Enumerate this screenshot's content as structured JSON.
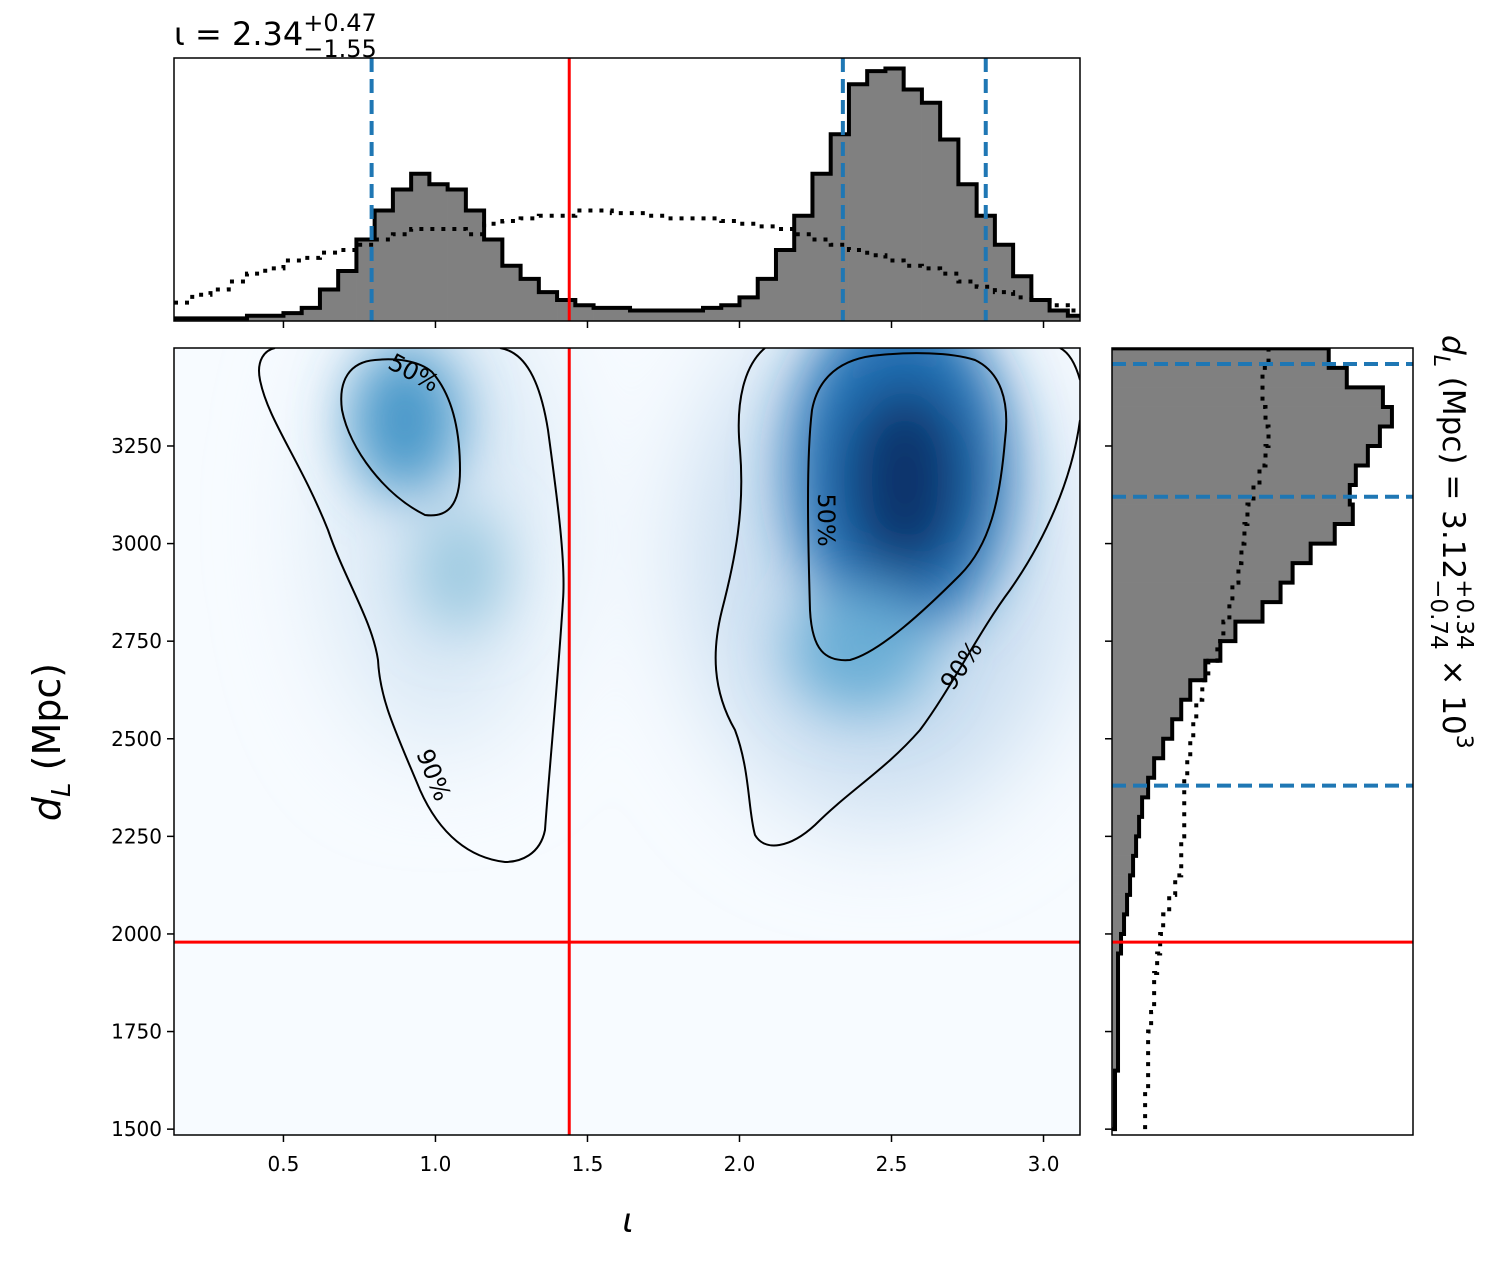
{
  "chart_data": [
    {
      "type": "histogram",
      "orientation": "vertical",
      "title": {
        "text": "ι = 2.34",
        "sup": "+0.47",
        "sub": "−1.55"
      },
      "bins": [
        0.14,
        0.2,
        0.26,
        0.32,
        0.38,
        0.44,
        0.5,
        0.56,
        0.62,
        0.68,
        0.74,
        0.8,
        0.86,
        0.92,
        0.98,
        1.04,
        1.1,
        1.16,
        1.22,
        1.28,
        1.34,
        1.4,
        1.46,
        1.52,
        1.58,
        1.64,
        1.7,
        1.76,
        1.82,
        1.88,
        1.94,
        2.0,
        2.06,
        2.12,
        2.18,
        2.24,
        2.3,
        2.36,
        2.42,
        2.48,
        2.54,
        2.6,
        2.66,
        2.72,
        2.78,
        2.84,
        2.9,
        2.96,
        3.02,
        3.08,
        3.14
      ],
      "series": [
        {
          "color": "#808080",
          "edgecolor": "#000000",
          "linestyle": "solid",
          "values": [
            1,
            1,
            1,
            1,
            2,
            2,
            3,
            5,
            12,
            19,
            31,
            42,
            50,
            56,
            52,
            50,
            42,
            31,
            21,
            16,
            11,
            8,
            6,
            5,
            5,
            4,
            4,
            4,
            4,
            5,
            6,
            9,
            16,
            27,
            40,
            56,
            71,
            90,
            95,
            96,
            88,
            83,
            69,
            52,
            40,
            29,
            17,
            8,
            4,
            2
          ]
        },
        {
          "color": "#000000",
          "linestyle": "dotted",
          "values": [
            7,
            10,
            12,
            15,
            18,
            20,
            23,
            24,
            26,
            27,
            29,
            31,
            33,
            35,
            35,
            35,
            33,
            37,
            38,
            39,
            40,
            40,
            42,
            42,
            41,
            41,
            40,
            39,
            39,
            39,
            38,
            37,
            36,
            35,
            33,
            31,
            29,
            27,
            25,
            23,
            21,
            20,
            18,
            15,
            13,
            11,
            9,
            8,
            6,
            4
          ]
        }
      ],
      "ylim": [
        0,
        100
      ],
      "quantiles": [
        0.79,
        2.34,
        2.81
      ],
      "quantile_color": "#1f77b4"
    },
    {
      "type": "density",
      "xlabel": "ι",
      "ylabel": {
        "text": "d",
        "sub": "L",
        "rest": " (Mpc)"
      },
      "xlim": [
        0.14,
        3.12
      ],
      "ylim": [
        1485,
        3501
      ],
      "xticks": [
        0.5,
        {
          "value": 1,
          "label": "1.0"
        },
        1.5,
        {
          "value": 2,
          "label": "2.0"
        },
        2.5,
        {
          "value": 3,
          "label": "3.0"
        }
      ],
      "yticks": [
        1500,
        1750,
        2000,
        2250,
        2500,
        2750,
        3000,
        3250
      ],
      "truth": {
        "x": 1.44,
        "y": 1979
      },
      "truth_color": "#ff0000",
      "contour_labels": [
        "50%",
        "90%",
        "50%",
        "90%"
      ]
    },
    {
      "type": "histogram",
      "orientation": "horizontal",
      "label": {
        "text": "d",
        "sub": "L",
        "rest": " (Mpc) = 3.12",
        "sup": "+0.34",
        "sub2": "−0.74",
        "times": " × 10",
        "exp": "3"
      },
      "bins": [
        1500,
        1550,
        1600,
        1650,
        1700,
        1750,
        1800,
        1850,
        1900,
        1950,
        2000,
        2050,
        2100,
        2150,
        2200,
        2250,
        2300,
        2350,
        2400,
        2450,
        2500,
        2550,
        2600,
        2650,
        2700,
        2750,
        2800,
        2850,
        2900,
        2950,
        3000,
        3050,
        3100,
        3150,
        3200,
        3250,
        3300,
        3350,
        3400,
        3450,
        3500
      ],
      "series": [
        {
          "color": "#808080",
          "edgecolor": "#000000",
          "linestyle": "solid",
          "values": [
            1,
            1,
            1,
            2,
            2,
            2,
            2,
            2,
            2,
            3,
            4,
            5,
            6,
            7,
            8,
            9,
            10,
            12,
            14,
            17,
            20,
            23,
            26,
            31,
            36,
            41,
            50,
            56,
            60,
            66,
            74,
            80,
            79,
            81,
            85,
            89,
            93,
            90,
            78,
            72
          ]
        },
        {
          "color": "#000000",
          "linestyle": "dotted",
          "values": [
            11,
            11,
            12,
            12,
            12,
            13,
            14,
            14,
            15,
            16,
            17,
            19,
            21,
            23,
            23,
            24,
            24,
            24,
            25,
            26,
            27,
            28,
            30,
            32,
            35,
            37,
            39,
            40,
            42,
            43,
            44,
            45,
            47,
            49,
            51,
            52,
            51,
            50,
            50,
            52
          ]
        }
      ],
      "xlim": [
        0,
        100
      ],
      "quantiles": [
        2380,
        3120,
        3460
      ],
      "quantile_color": "#1f77b4"
    }
  ]
}
